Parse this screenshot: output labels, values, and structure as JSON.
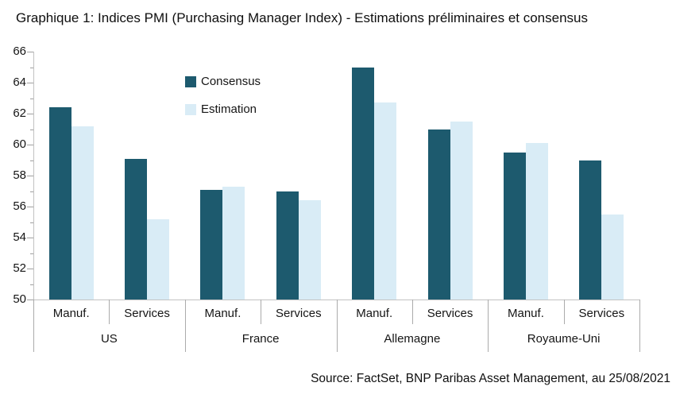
{
  "title": "Graphique 1: Indices PMI (Purchasing Manager Index) - Estimations préliminaires et consensus",
  "source": "Source: FactSet, BNP Paribas Asset Management, au 25/08/2021",
  "colors": {
    "consensus": "#1d5a6e",
    "estimation": "#d9ecf6",
    "axis": "#c2c2c2",
    "separator": "#ababab",
    "tick": "#a0a0a0",
    "text": "#151515"
  },
  "legend": {
    "items": [
      {
        "label": "Consensus",
        "color": "#1d5a6e"
      },
      {
        "label": "Estimation",
        "color": "#d9ecf6"
      }
    ]
  },
  "chart_data": {
    "type": "bar",
    "title": "Graphique 1: Indices PMI (Purchasing Manager Index) - Estimations préliminaires et consensus",
    "xlabel": "",
    "ylabel": "",
    "ylim": [
      50,
      66
    ],
    "ytick_major_step": 2,
    "ytick_minor_step": 1,
    "ytick_labels": [
      "50",
      "52",
      "54",
      "56",
      "58",
      "60",
      "62",
      "64",
      "66"
    ],
    "grid": false,
    "legend_position": "inside-top-left",
    "group_labels": [
      "US",
      "France",
      "Allemagne",
      "Royaume-Uni"
    ],
    "category_sublabels": [
      "Manuf.",
      "Services",
      "Manuf.",
      "Services",
      "Manuf.",
      "Services",
      "Manuf.",
      "Services"
    ],
    "categories": [
      "US Manuf.",
      "US Services",
      "France Manuf.",
      "France Services",
      "Allemagne Manuf.",
      "Allemagne Services",
      "Royaume-Uni Manuf.",
      "Royaume-Uni Services"
    ],
    "series": [
      {
        "name": "Consensus",
        "color": "#1d5a6e",
        "values": [
          62.4,
          59.1,
          57.1,
          57.0,
          65.0,
          61.0,
          59.5,
          59.0
        ]
      },
      {
        "name": "Estimation",
        "color": "#d9ecf6",
        "values": [
          61.2,
          55.2,
          57.3,
          56.4,
          62.7,
          61.5,
          60.1,
          55.5
        ]
      }
    ]
  }
}
